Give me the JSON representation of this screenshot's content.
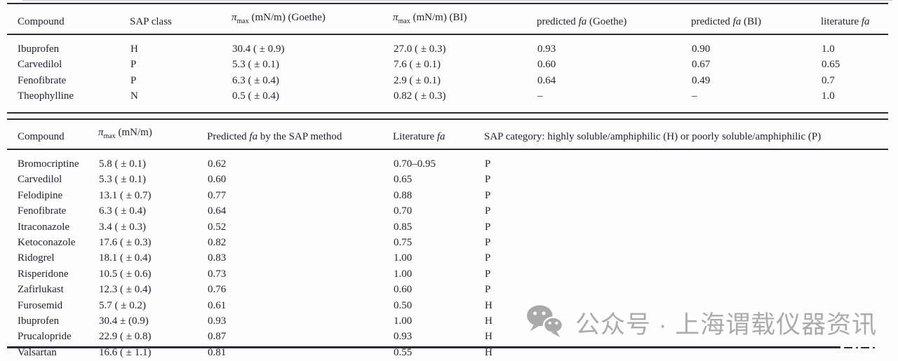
{
  "colors": {
    "text": "#23242c",
    "rule": "#2b2b33",
    "watermark": "#ababab",
    "background": "#ffffff"
  },
  "table1": {
    "headers": [
      {
        "text": "Compound"
      },
      {
        "text": "SAP class"
      },
      {
        "sym": "π",
        "sub": "max",
        "post": " (mN/m) (Goethe)"
      },
      {
        "sym": "π",
        "sub": "max",
        "post": " (mN/m) (BI)"
      },
      {
        "pre": "predicted ",
        "italic": "fa",
        "post": " (Goethe)"
      },
      {
        "pre": "predicted ",
        "italic": "fa",
        "post": " (BI)"
      },
      {
        "pre": "literature ",
        "italic": "fa"
      }
    ],
    "rows": [
      [
        "Ibuprofen",
        "H",
        "30.4 ( ± 0.9)",
        "27.0 ( ± 0.3)",
        "0.93",
        "0.90",
        "1.0"
      ],
      [
        "Carvedilol",
        "P",
        "5.3 ( ± 0.1)",
        "7.6 ( ± 0.1)",
        "0.60",
        "0.67",
        "0.65"
      ],
      [
        "Fenofibrate",
        "P",
        "6.3 ( ± 0.4)",
        "2.9 ( ± 0.1)",
        "0.64",
        "0.49",
        "0.7"
      ],
      [
        "Theophylline",
        "N",
        "0.5 ( ± 0.4)",
        "0.82 ( ± 0.3)",
        "–",
        "–",
        "1.0"
      ]
    ]
  },
  "table2": {
    "headers": [
      {
        "text": "Compound"
      },
      {
        "sym": "π",
        "sub": "max",
        "post": " (mN/m)"
      },
      {
        "pre": "Predicted ",
        "italic": "fa",
        "post": " by the SAP method"
      },
      {
        "pre": "Literature ",
        "italic": "fa"
      },
      {
        "text": "SAP category: highly soluble/amphiphilic (H) or poorly soluble/amphiphilic (P)"
      }
    ],
    "rows": [
      [
        "Bromocriptine",
        "5.8 ( ± 0.1)",
        "0.62",
        "0.70–0.95",
        "P"
      ],
      [
        "Carvedilol",
        "5.3 ( ± 0.1)",
        "0.60",
        "0.65",
        "P"
      ],
      [
        "Felodipine",
        "13.1 ( ± 0.7)",
        "0.77",
        "0.88",
        "P"
      ],
      [
        "Fenofibrate",
        "6.3 ( ± 0.4)",
        "0.64",
        "0.70",
        "P"
      ],
      [
        "Itraconazole",
        "3.4 ( ± 0.3)",
        "0.52",
        "0.85",
        "P"
      ],
      [
        "Ketoconazole",
        "17.6 ( ± 0.3)",
        "0.82",
        "0.75",
        "P"
      ],
      [
        "Ridogrel",
        "18.1 ( ± 0.4)",
        "0.83",
        "1.00",
        "P"
      ],
      [
        "Risperidone",
        "10.5 ( ± 0.6)",
        "0.73",
        "1.00",
        "P"
      ],
      [
        "Zafirlukast",
        "12.3 ( ± 0.4)",
        "0.76",
        "0.60",
        "P"
      ],
      [
        "Furosemid",
        "5.7 ( ± 0.2)",
        "0.61",
        "0.50",
        "H"
      ],
      [
        "Ibuprofen",
        "30.4 ± (0.9)",
        "0.93",
        "1.00",
        "H"
      ],
      [
        "Prucalopride",
        "22.9 ( ± 0.8)",
        "0.87",
        "0.93",
        "H"
      ],
      [
        "Valsartan",
        "16.6 ( ± 1.1)",
        "0.81",
        "0.55",
        "H"
      ]
    ]
  },
  "watermark": {
    "icon": "wechat-icon",
    "text": "公众号 · 上海谓载仪器资讯"
  }
}
